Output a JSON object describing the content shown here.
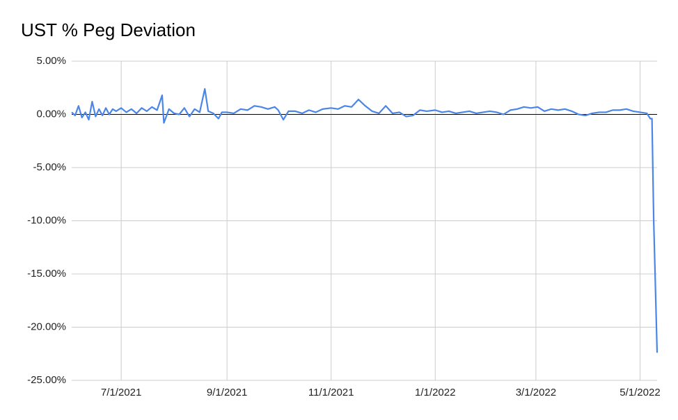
{
  "chart_data": {
    "type": "line",
    "title": "UST % Peg Deviation",
    "x": [
      "6/2/2021",
      "6/4/2021",
      "6/6/2021",
      "6/8/2021",
      "6/10/2021",
      "6/12/2021",
      "6/14/2021",
      "6/16/2021",
      "6/18/2021",
      "6/20/2021",
      "6/22/2021",
      "6/24/2021",
      "6/26/2021",
      "6/28/2021",
      "7/1/2021",
      "7/4/2021",
      "7/7/2021",
      "7/10/2021",
      "7/13/2021",
      "7/16/2021",
      "7/19/2021",
      "7/22/2021",
      "7/25/2021",
      "7/26/2021",
      "7/29/2021",
      "8/1/2021",
      "8/4/2021",
      "8/7/2021",
      "8/10/2021",
      "8/13/2021",
      "8/16/2021",
      "8/19/2021",
      "8/21/2021",
      "8/24/2021",
      "8/27/2021",
      "8/29/2021",
      "9/1/2021",
      "9/5/2021",
      "9/9/2021",
      "9/13/2021",
      "9/17/2021",
      "9/21/2021",
      "9/25/2021",
      "9/29/2021",
      "10/1/2021",
      "10/4/2021",
      "10/7/2021",
      "10/11/2021",
      "10/15/2021",
      "10/19/2021",
      "10/23/2021",
      "10/27/2021",
      "11/1/2021",
      "11/5/2021",
      "11/9/2021",
      "11/13/2021",
      "11/17/2021",
      "11/21/2021",
      "11/25/2021",
      "11/29/2021",
      "12/3/2021",
      "12/7/2021",
      "12/11/2021",
      "12/15/2021",
      "12/19/2021",
      "12/23/2021",
      "12/27/2021",
      "1/1/2022",
      "1/5/2022",
      "1/9/2022",
      "1/13/2022",
      "1/17/2022",
      "1/21/2022",
      "1/25/2022",
      "1/29/2022",
      "2/2/2022",
      "2/6/2022",
      "2/10/2022",
      "2/14/2022",
      "2/18/2022",
      "2/22/2022",
      "2/26/2022",
      "3/2/2022",
      "3/6/2022",
      "3/10/2022",
      "3/14/2022",
      "3/18/2022",
      "3/22/2022",
      "3/26/2022",
      "3/30/2022",
      "4/3/2022",
      "4/7/2022",
      "4/11/2022",
      "4/15/2022",
      "4/19/2022",
      "4/23/2022",
      "4/27/2022",
      "5/1/2022",
      "5/5/2022",
      "5/7/2022",
      "5/8/2022",
      "5/9/2022",
      "5/11/2022"
    ],
    "series": [
      {
        "name": "UST % Peg Deviation",
        "color": "#4a86e8",
        "values": [
          0.2,
          -0.1,
          0.8,
          -0.3,
          0.2,
          -0.5,
          1.2,
          -0.2,
          0.5,
          -0.1,
          0.6,
          0.0,
          0.5,
          0.3,
          0.6,
          0.2,
          0.5,
          0.1,
          0.6,
          0.3,
          0.7,
          0.4,
          1.8,
          -0.8,
          0.5,
          0.1,
          0.0,
          0.6,
          -0.2,
          0.5,
          0.2,
          2.4,
          0.3,
          0.1,
          -0.4,
          0.2,
          0.2,
          0.1,
          0.5,
          0.4,
          0.8,
          0.7,
          0.5,
          0.7,
          0.4,
          -0.5,
          0.3,
          0.3,
          0.1,
          0.4,
          0.2,
          0.5,
          0.6,
          0.5,
          0.8,
          0.7,
          1.4,
          0.8,
          0.3,
          0.1,
          0.8,
          0.1,
          0.2,
          -0.2,
          -0.1,
          0.4,
          0.3,
          0.4,
          0.2,
          0.3,
          0.1,
          0.2,
          0.3,
          0.1,
          0.2,
          0.3,
          0.2,
          0.0,
          0.4,
          0.5,
          0.7,
          0.6,
          0.7,
          0.3,
          0.5,
          0.4,
          0.5,
          0.3,
          0.0,
          -0.1,
          0.1,
          0.2,
          0.2,
          0.4,
          0.4,
          0.5,
          0.3,
          0.2,
          0.1,
          -0.4,
          -0.4,
          -10.0,
          -22.4
        ]
      }
    ],
    "xlim": [
      "6/2/2021",
      "5/11/2022"
    ],
    "xticks": [
      "7/1/2021",
      "9/1/2021",
      "11/1/2021",
      "1/1/2022",
      "3/1/2022",
      "5/1/2022"
    ],
    "ylim": [
      -25,
      5
    ],
    "yticks": [
      {
        "value": -25,
        "label": "-25.00%"
      },
      {
        "value": -20,
        "label": "-20.00%"
      },
      {
        "value": -15,
        "label": "-15.00%"
      },
      {
        "value": -10,
        "label": "-10.00%"
      },
      {
        "value": -5,
        "label": "-5.00%"
      },
      {
        "value": 0,
        "label": "0.00%"
      },
      {
        "value": 5,
        "label": "5.00%"
      }
    ],
    "grid": true
  }
}
